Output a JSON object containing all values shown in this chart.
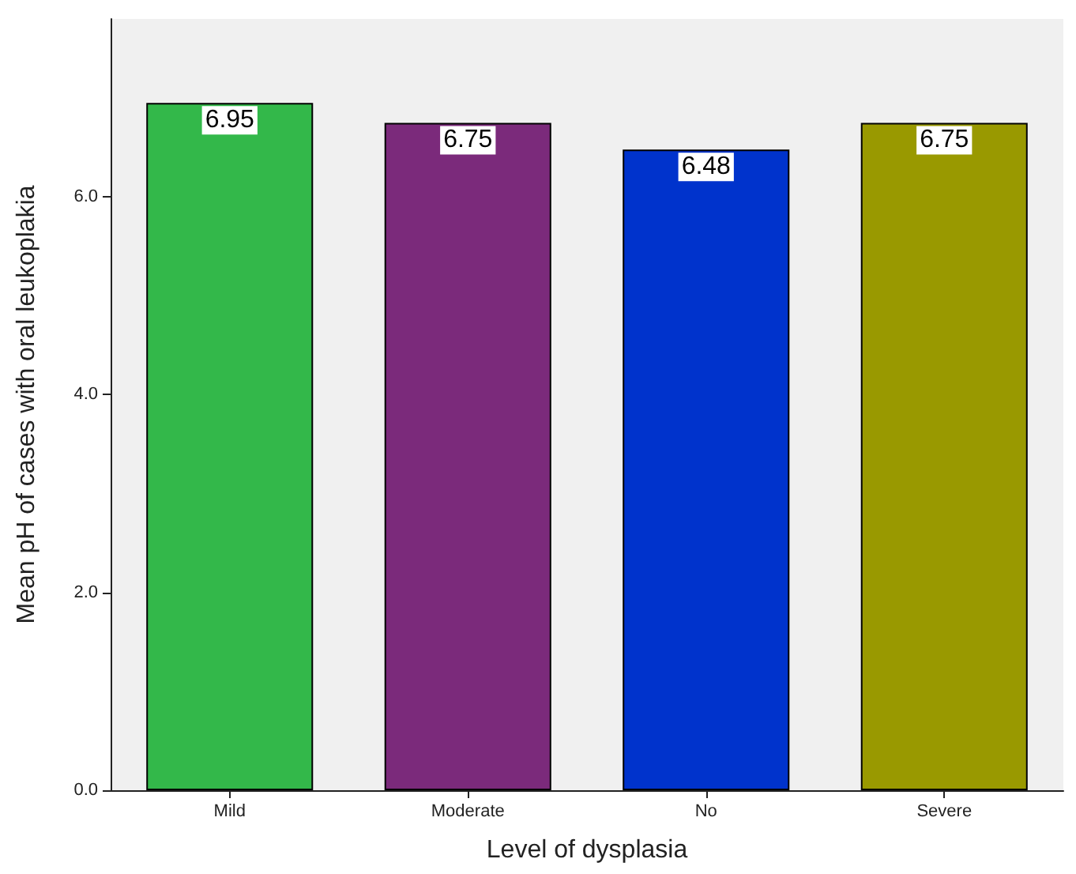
{
  "chart_data": {
    "type": "bar",
    "xlabel": "Level of dysplasia",
    "ylabel": "Mean pH of cases with oral leukoplakia",
    "categories": [
      "Mild",
      "Moderate",
      "No",
      "Severe"
    ],
    "values": [
      6.95,
      6.75,
      6.48,
      6.75
    ],
    "colors": [
      "#33b84a",
      "#7b2a7b",
      "#0033cc",
      "#999900"
    ],
    "ylim": [
      0,
      7.8
    ],
    "yticks": [
      {
        "value": 0,
        "label": "0.0"
      },
      {
        "value": 2,
        "label": "2.0"
      },
      {
        "value": 4,
        "label": "4.0"
      },
      {
        "value": 6,
        "label": "6.0"
      }
    ],
    "data_labels": true,
    "grid": false
  }
}
